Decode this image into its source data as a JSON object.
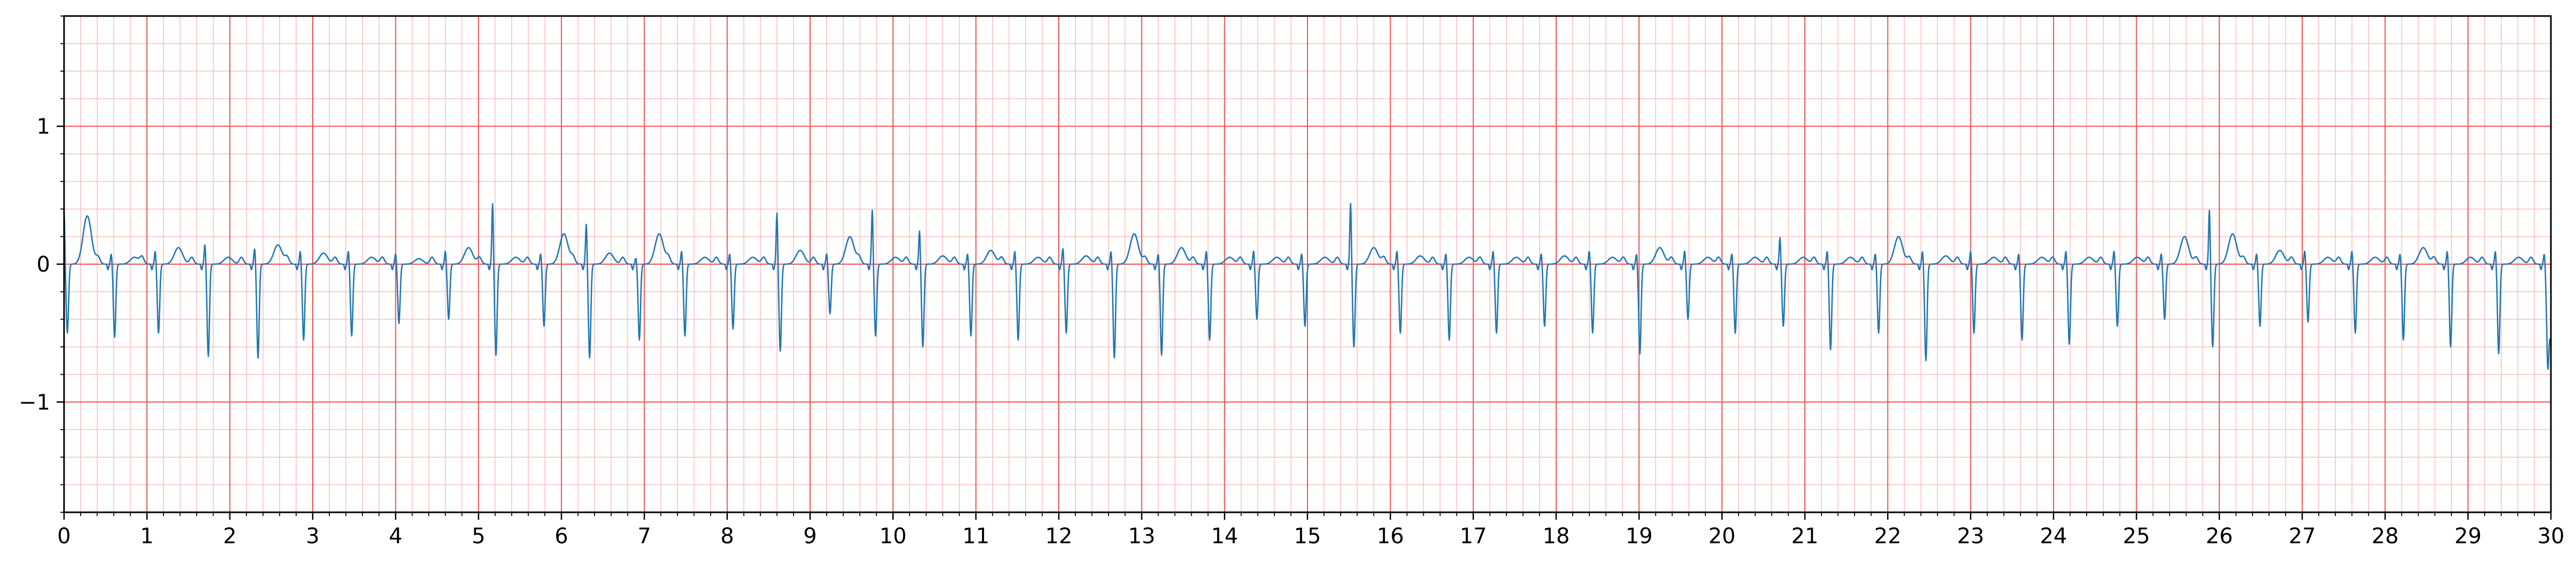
{
  "chart_data": {
    "type": "line",
    "title": "",
    "xlabel": "",
    "ylabel": "",
    "xlim": [
      0,
      30
    ],
    "ylim": [
      -1.8,
      1.8
    ],
    "x_ticks": [
      "0",
      "1",
      "2",
      "3",
      "4",
      "5",
      "6",
      "7",
      "8",
      "9",
      "10",
      "11",
      "12",
      "13",
      "14",
      "15",
      "16",
      "17",
      "18",
      "19",
      "20",
      "21",
      "22",
      "23",
      "24",
      "25",
      "26",
      "27",
      "28",
      "29",
      "30"
    ],
    "y_ticks": [
      {
        "value": 1,
        "label": "1"
      },
      {
        "value": 0,
        "label": "0"
      },
      {
        "value": -1,
        "label": "−1"
      }
    ],
    "grid": {
      "major": true,
      "minor": true,
      "major_step": 1.0,
      "minor_step": 0.2,
      "major_color": "#f05050",
      "minor_color": "#fbc0c0"
    },
    "series": [
      {
        "color": "#1f77b4",
        "sample_interval_s": 0.02,
        "start_s": 0.0,
        "beat_times_s": [
          0.0,
          0.57,
          1.1,
          1.7,
          2.3,
          2.85,
          3.43,
          4.0,
          4.6,
          5.17,
          5.75,
          6.3,
          6.9,
          7.45,
          8.03,
          8.6,
          9.2,
          9.75,
          10.32,
          10.9,
          11.47,
          12.05,
          12.63,
          13.2,
          13.78,
          14.35,
          14.93,
          15.52,
          16.08,
          16.67,
          17.24,
          17.82,
          18.4,
          18.97,
          19.55,
          20.12,
          20.7,
          21.27,
          21.85,
          22.42,
          23.0,
          23.58,
          24.15,
          24.73,
          25.3,
          25.88,
          26.45,
          27.03,
          27.6,
          28.18,
          28.75,
          29.33,
          29.92
        ],
        "beat_r_peaks": [
          0.4,
          0.08,
          0.1,
          0.15,
          0.12,
          0.1,
          0.1,
          0.08,
          0.1,
          0.45,
          0.08,
          0.3,
          0.05,
          0.1,
          0.08,
          0.38,
          0.08,
          0.4,
          0.25,
          0.08,
          0.1,
          0.12,
          0.1,
          0.08,
          0.1,
          0.1,
          0.08,
          0.45,
          0.1,
          0.08,
          0.1,
          0.08,
          0.1,
          0.08,
          0.1,
          0.08,
          0.2,
          0.1,
          0.08,
          0.1,
          0.1,
          0.08,
          0.1,
          0.1,
          0.08,
          0.4,
          0.08,
          0.1,
          0.1,
          0.08,
          0.1,
          0.1,
          0.08
        ],
        "beat_s_troughs": [
          -0.5,
          -0.53,
          -0.5,
          -0.67,
          -0.68,
          -0.55,
          -0.52,
          -0.43,
          -0.4,
          -0.66,
          -0.45,
          -0.68,
          -0.55,
          -0.52,
          -0.47,
          -0.63,
          -0.36,
          -0.52,
          -0.6,
          -0.52,
          -0.55,
          -0.5,
          -0.68,
          -0.66,
          -0.55,
          -0.4,
          -0.45,
          -0.6,
          -0.5,
          -0.55,
          -0.5,
          -0.45,
          -0.5,
          -0.65,
          -0.4,
          -0.5,
          -0.45,
          -0.62,
          -0.5,
          -0.7,
          -0.5,
          -0.55,
          -0.58,
          -0.45,
          -0.4,
          -0.6,
          -0.45,
          -0.42,
          -0.5,
          -0.55,
          -0.6,
          -0.65,
          -0.62
        ],
        "beat_t_waves": [
          0.35,
          0.05,
          0.12,
          0.05,
          0.14,
          0.08,
          0.05,
          0.04,
          0.12,
          0.05,
          0.22,
          0.08,
          0.22,
          0.05,
          0.05,
          0.1,
          0.2,
          0.05,
          0.06,
          0.1,
          0.05,
          0.06,
          0.22,
          0.12,
          0.05,
          0.05,
          0.05,
          0.12,
          0.06,
          0.05,
          0.05,
          0.06,
          0.05,
          0.12,
          0.05,
          0.05,
          0.05,
          0.05,
          0.2,
          0.06,
          0.05,
          0.05,
          0.05,
          0.05,
          0.2,
          0.22,
          0.1,
          0.05,
          0.05,
          0.12,
          0.05,
          0.05,
          0.05
        ]
      }
    ]
  }
}
